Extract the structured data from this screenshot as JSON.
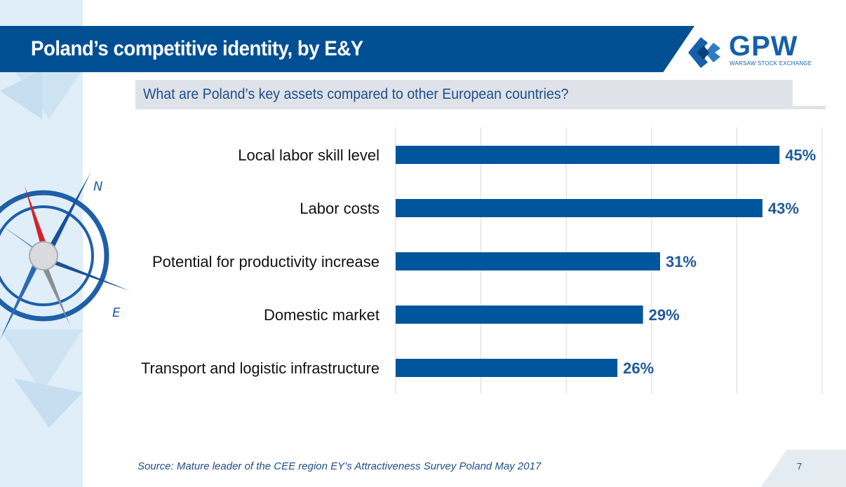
{
  "slide": {
    "title": "Poland’s competitive identity, by E&Y",
    "question": "What are Poland’s key assets compared to other European countries?",
    "source": "Source: Mature leader of the CEE region EY’s Attractiveness Survey Poland May 2017",
    "page_number": "7",
    "logo": {
      "name": "GPW",
      "tagline": "WARSAW STOCK EXCHANGE"
    },
    "compass_labels": {
      "north": "N",
      "east": "E"
    }
  },
  "colors": {
    "title_bar": "#004f93",
    "bar": "#00569c",
    "value_label": "#1f5a9a",
    "question_bg": "#dfe3e9",
    "side_panel": "#dfeef8"
  },
  "chart_data": {
    "type": "bar",
    "orientation": "horizontal",
    "categories": [
      "Local labor skill level",
      "Labor costs",
      "Potential for productivity increase",
      "Domestic market",
      "Transport and logistic infrastructure"
    ],
    "values": [
      45,
      43,
      31,
      29,
      26
    ],
    "value_labels": [
      "45%",
      "43%",
      "31%",
      "29%",
      "26%"
    ],
    "unit": "%",
    "xlim": [
      0,
      50
    ],
    "grid": true
  }
}
